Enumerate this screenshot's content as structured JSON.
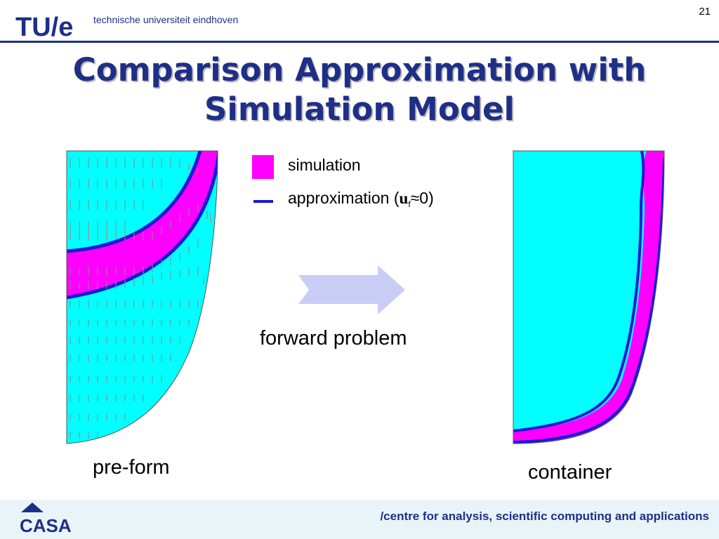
{
  "header": {
    "logo_text": "TU/e",
    "university": "technische universiteit eindhoven",
    "page_number": "21"
  },
  "title": {
    "line1": "Comparison Approximation with",
    "line2": "Simulation Model"
  },
  "legend": {
    "simulation": "simulation",
    "approximation": "approximation (",
    "approx_var": "u",
    "approx_sub": "f",
    "approx_tail": "≈0)"
  },
  "arrow_label": "forward problem",
  "captions": {
    "left": "pre-form",
    "right": "container"
  },
  "footer": {
    "logo": "CASA",
    "text": "/centre for analysis, scientific computing and applications"
  },
  "colors": {
    "navy": "#1f2f86",
    "cyan": "#00ffff",
    "magenta": "#ff00ff",
    "blue": "#1a1ad6",
    "arrow": "#c9cdf5"
  }
}
